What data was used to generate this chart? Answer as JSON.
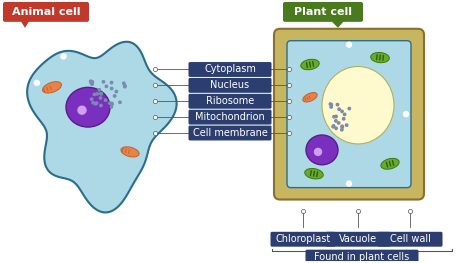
{
  "background_color": "#ffffff",
  "animal_cell_label": "Animal cell",
  "plant_cell_label": "Plant cell",
  "animal_label_bg": "#c0392b",
  "plant_label_bg": "#4a7a1e",
  "label_text_color": "#ffffff",
  "cell_bg": "#add8e6",
  "plant_outer_bg": "#c8b560",
  "plant_inner_bg": "#add8e6",
  "vacuole_color": "#fffacd",
  "nucleus_color": "#7b2fbe",
  "nucleus_dot_color": "#ffffff",
  "mitochondria_color": "#e8824a",
  "chloroplast_color": "#6aaa2a",
  "ribosome_dot_color": "#7a8ab0",
  "labels": [
    "Cytoplasm",
    "Nucleus",
    "Ribosome",
    "Mitochondrion",
    "Cell membrane"
  ],
  "bottom_labels": [
    "Chloroplast",
    "Vacuole",
    "Cell wall"
  ],
  "bottom_group_label": "Found in plant cells",
  "label_box_color": "#2c3e70",
  "label_text_size": 7,
  "title_text_size": 8
}
